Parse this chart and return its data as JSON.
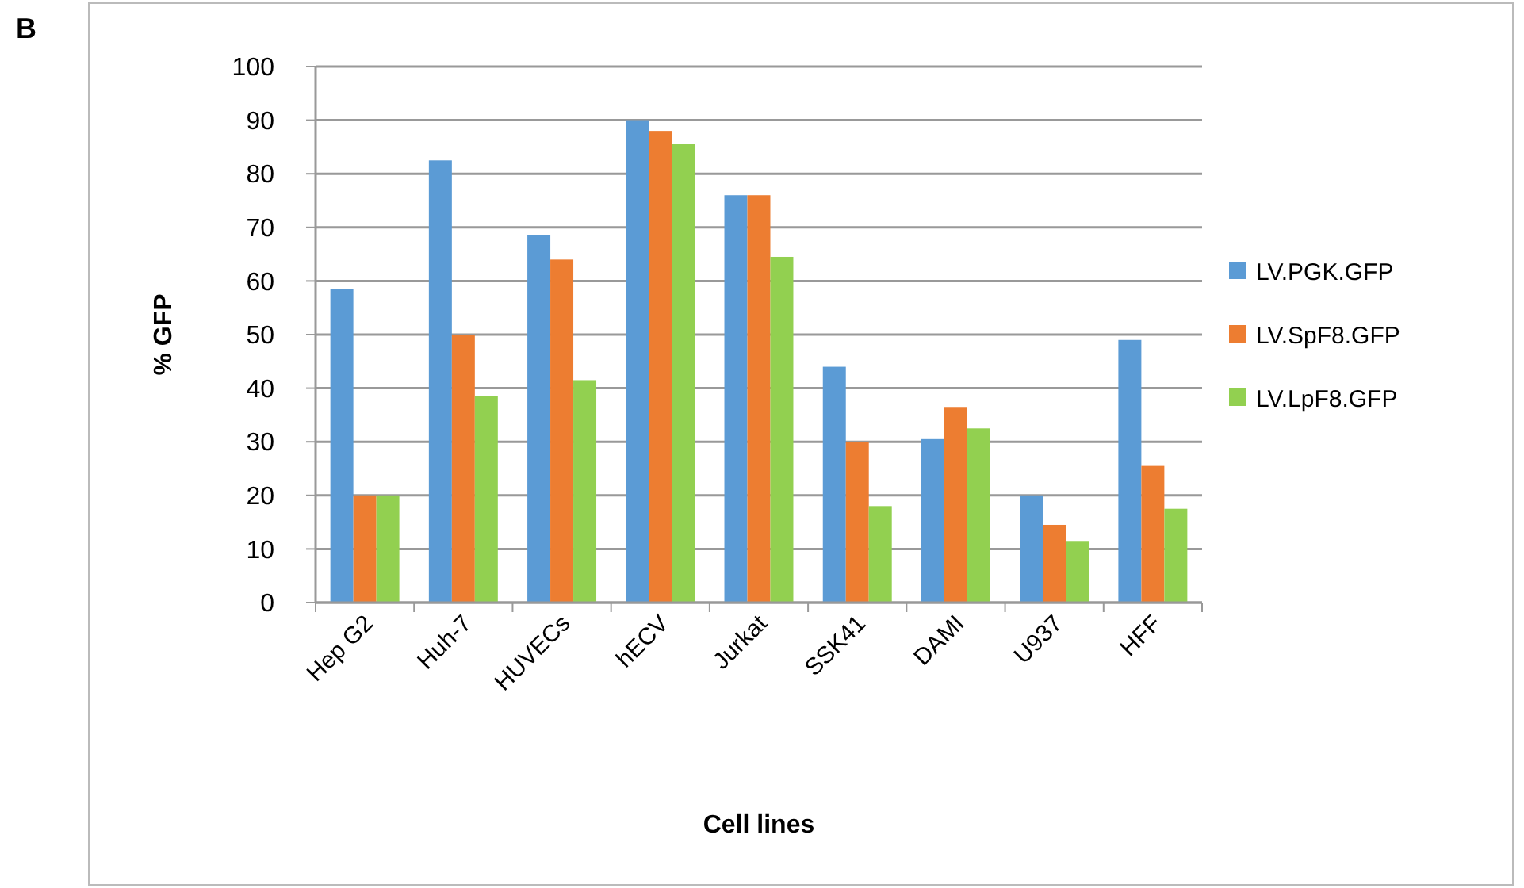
{
  "chart_data": {
    "type": "bar",
    "xlabel": "Cell lines",
    "ylabel": "% GFP",
    "annotations": [
      "B"
    ],
    "categories": [
      "Hep G2",
      "Huh-7",
      "HUVECs",
      "hECV",
      "Jurkat",
      "SSK41",
      "DAMI",
      "U937",
      "HFF"
    ],
    "series": [
      {
        "name": "LV.PGK.GFP",
        "color": "#5b9bd5",
        "values": [
          58.5,
          82.5,
          68.5,
          90,
          76,
          44,
          30.5,
          20,
          49
        ]
      },
      {
        "name": "LV.SpF8.GFP",
        "color": "#ed7d31",
        "values": [
          20,
          50,
          64,
          88,
          76,
          30,
          36.5,
          14.5,
          25.5
        ]
      },
      {
        "name": "LV.LpF8.GFP",
        "color": "#92d050",
        "values": [
          20,
          38.5,
          41.5,
          85.5,
          64.5,
          18,
          32.5,
          11.5,
          17.5
        ]
      }
    ],
    "ylim": [
      0,
      100
    ],
    "yticks": [
      0,
      10,
      20,
      30,
      40,
      50,
      60,
      70,
      80,
      90,
      100
    ],
    "grid": "y",
    "legend": "right"
  }
}
